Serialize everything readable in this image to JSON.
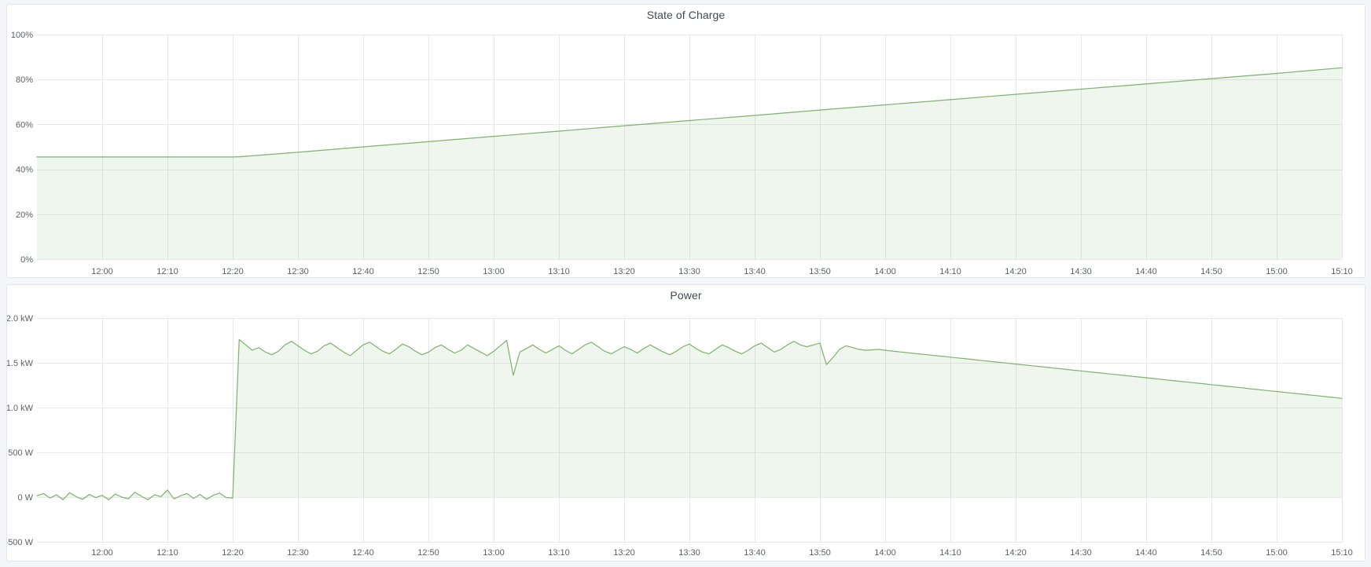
{
  "dashboard": {
    "background_color": "#f4f5f8",
    "panel_background": "#ffffff",
    "panel_border_color": "#e2e5ea",
    "grid_color": "#e7e8eb",
    "accent_green": "#7EB26D"
  },
  "panels": [
    {
      "title": "State of Charge"
    },
    {
      "title": "Power"
    }
  ],
  "chart_data": [
    {
      "type": "area",
      "title": "State of Charge",
      "xlabel": "",
      "ylabel": "",
      "unit": "%",
      "ylim": [
        0,
        100
      ],
      "x_range_minutes": [
        0,
        200
      ],
      "x_start_time": "11:50",
      "grid": true,
      "legend": "none",
      "y_ticks": [
        {
          "value": 100,
          "label": "100%"
        },
        {
          "value": 80,
          "label": "80%"
        },
        {
          "value": 60,
          "label": "60%"
        },
        {
          "value": 40,
          "label": "40%"
        },
        {
          "value": 20,
          "label": "20%"
        },
        {
          "value": 0,
          "label": "0%"
        }
      ],
      "x_ticks": [
        {
          "minute": 10,
          "label": "12:00"
        },
        {
          "minute": 20,
          "label": "12:10"
        },
        {
          "minute": 30,
          "label": "12:20"
        },
        {
          "minute": 40,
          "label": "12:30"
        },
        {
          "minute": 50,
          "label": "12:40"
        },
        {
          "minute": 60,
          "label": "12:50"
        },
        {
          "minute": 70,
          "label": "13:00"
        },
        {
          "minute": 80,
          "label": "13:10"
        },
        {
          "minute": 90,
          "label": "13:20"
        },
        {
          "minute": 100,
          "label": "13:30"
        },
        {
          "minute": 110,
          "label": "13:40"
        },
        {
          "minute": 120,
          "label": "13:50"
        },
        {
          "minute": 130,
          "label": "14:00"
        },
        {
          "minute": 140,
          "label": "14:10"
        },
        {
          "minute": 150,
          "label": "14:20"
        },
        {
          "minute": 160,
          "label": "14:30"
        },
        {
          "minute": 170,
          "label": "14:40"
        },
        {
          "minute": 180,
          "label": "14:50"
        },
        {
          "minute": 190,
          "label": "15:00"
        },
        {
          "minute": 200,
          "label": "15:10"
        }
      ],
      "series": [
        {
          "name": "State of Charge",
          "color": "#7EB26D",
          "fill": "rgba(126,178,109,0.12)",
          "fill_to": 0,
          "x_minutes": [
            0,
            10,
            20,
            30,
            31,
            40,
            50,
            60,
            70,
            80,
            90,
            100,
            110,
            120,
            130,
            140,
            150,
            160,
            170,
            180,
            190,
            200
          ],
          "values": [
            45.5,
            45.5,
            45.5,
            45.5,
            45.6,
            47.6,
            50.0,
            52.3,
            54.7,
            57.0,
            59.4,
            61.7,
            64.0,
            66.4,
            68.7,
            71.0,
            73.4,
            75.7,
            78.0,
            80.4,
            82.7,
            85.2
          ]
        }
      ]
    },
    {
      "type": "area",
      "title": "Power",
      "xlabel": "",
      "ylabel": "",
      "unit": "W",
      "ylim": [
        -500,
        2000
      ],
      "x_range_minutes": [
        0,
        200
      ],
      "x_start_time": "11:50",
      "grid": true,
      "legend": "none",
      "y_ticks": [
        {
          "value": 2000,
          "label": "2.0 kW"
        },
        {
          "value": 1500,
          "label": "1.5 kW"
        },
        {
          "value": 1000,
          "label": "1.0 kW"
        },
        {
          "value": 500,
          "label": "500 W"
        },
        {
          "value": 0,
          "label": "0 W"
        },
        {
          "value": -500,
          "label": "-500 W"
        }
      ],
      "x_ticks": [
        {
          "minute": 10,
          "label": "12:00"
        },
        {
          "minute": 20,
          "label": "12:10"
        },
        {
          "minute": 30,
          "label": "12:20"
        },
        {
          "minute": 40,
          "label": "12:30"
        },
        {
          "minute": 50,
          "label": "12:40"
        },
        {
          "minute": 60,
          "label": "12:50"
        },
        {
          "minute": 70,
          "label": "13:00"
        },
        {
          "minute": 80,
          "label": "13:10"
        },
        {
          "minute": 90,
          "label": "13:20"
        },
        {
          "minute": 100,
          "label": "13:30"
        },
        {
          "minute": 110,
          "label": "13:40"
        },
        {
          "minute": 120,
          "label": "13:50"
        },
        {
          "minute": 130,
          "label": "14:00"
        },
        {
          "minute": 140,
          "label": "14:10"
        },
        {
          "minute": 150,
          "label": "14:20"
        },
        {
          "minute": 160,
          "label": "14:30"
        },
        {
          "minute": 170,
          "label": "14:40"
        },
        {
          "minute": 180,
          "label": "14:50"
        },
        {
          "minute": 190,
          "label": "15:00"
        },
        {
          "minute": 200,
          "label": "15:10"
        }
      ],
      "series": [
        {
          "name": "Power",
          "color": "#7EB26D",
          "fill": "rgba(126,178,109,0.12)",
          "fill_to": 0,
          "x_minutes_start": 0,
          "x_minutes_step": 1,
          "values": [
            15,
            40,
            -10,
            25,
            -30,
            50,
            5,
            -25,
            30,
            -5,
            20,
            -30,
            35,
            0,
            -20,
            55,
            10,
            -30,
            25,
            5,
            80,
            -20,
            15,
            40,
            -15,
            30,
            -25,
            20,
            45,
            -5,
            -10,
            1760,
            1700,
            1640,
            1670,
            1620,
            1590,
            1630,
            1700,
            1740,
            1690,
            1640,
            1600,
            1630,
            1690,
            1720,
            1670,
            1620,
            1580,
            1640,
            1700,
            1730,
            1680,
            1630,
            1600,
            1650,
            1710,
            1680,
            1630,
            1590,
            1620,
            1670,
            1700,
            1650,
            1610,
            1640,
            1700,
            1660,
            1620,
            1580,
            1630,
            1690,
            1750,
            1360,
            1620,
            1660,
            1700,
            1650,
            1610,
            1650,
            1690,
            1640,
            1600,
            1650,
            1700,
            1730,
            1680,
            1630,
            1600,
            1640,
            1680,
            1650,
            1610,
            1660,
            1700,
            1660,
            1620,
            1590,
            1630,
            1680,
            1710,
            1660,
            1620,
            1600,
            1650,
            1700,
            1670,
            1630,
            1600,
            1640,
            1690,
            1720,
            1670,
            1620,
            1650,
            1700,
            1740,
            1700,
            1680,
            1700,
            1720,
            1480,
            1560,
            1650,
            1690,
            1670,
            1650,
            1640,
            1645,
            1650,
            1640,
            1632,
            1624,
            1617,
            1609,
            1601,
            1594,
            1586,
            1578,
            1571,
            1563,
            1555,
            1548,
            1540,
            1532,
            1525,
            1517,
            1509,
            1502,
            1494,
            1486,
            1479,
            1471,
            1463,
            1456,
            1448,
            1440,
            1433,
            1425,
            1417,
            1410,
            1402,
            1394,
            1387,
            1379,
            1371,
            1364,
            1356,
            1348,
            1341,
            1333,
            1325,
            1318,
            1310,
            1302,
            1295,
            1287,
            1279,
            1272,
            1264,
            1256,
            1249,
            1241,
            1233,
            1226,
            1218,
            1210,
            1203,
            1195,
            1187,
            1180,
            1172,
            1164,
            1157,
            1149,
            1141,
            1134,
            1126,
            1118,
            1111,
            1103
          ]
        }
      ]
    }
  ]
}
